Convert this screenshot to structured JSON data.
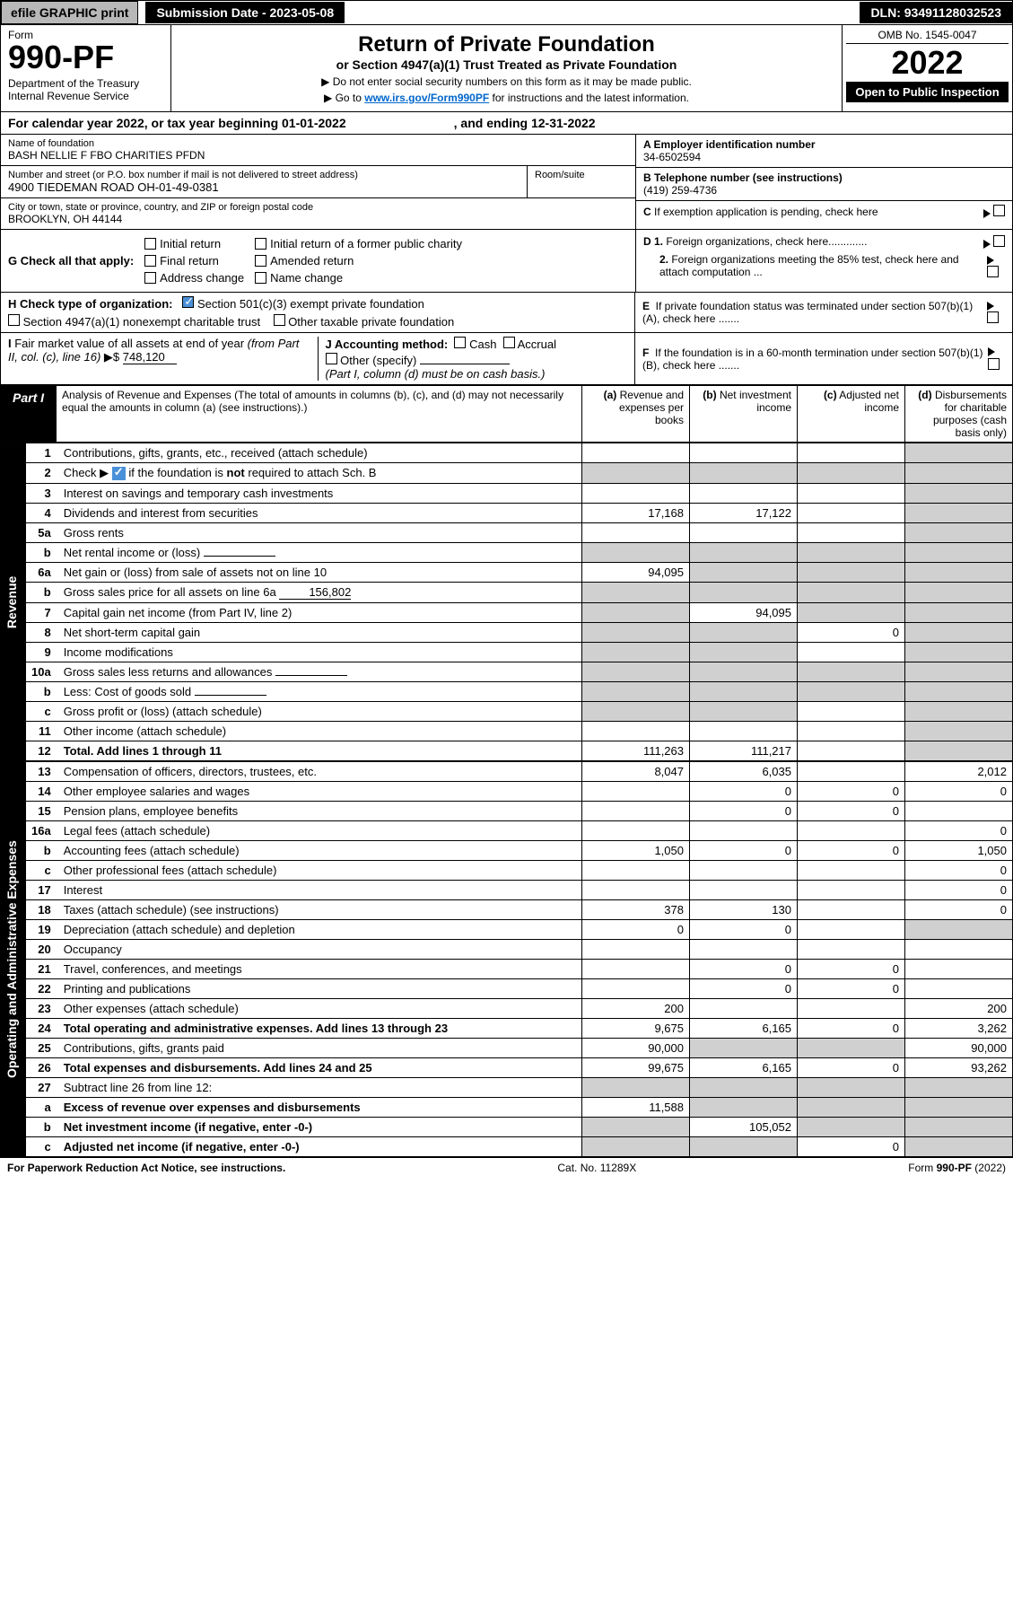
{
  "topbar": {
    "efile": "efile GRAPHIC print",
    "subDate": "Submission Date - 2023-05-08",
    "dln": "DLN: 93491128032523"
  },
  "header": {
    "formLabel": "Form",
    "formNo": "990-PF",
    "dept": "Department of the Treasury\nInternal Revenue Service",
    "title": "Return of Private Foundation",
    "subtitle": "or Section 4947(a)(1) Trust Treated as Private Foundation",
    "note1": "▶ Do not enter social security numbers on this form as it may be made public.",
    "note2": "▶ Go to ",
    "link": "www.irs.gov/Form990PF",
    "note2b": " for instructions and the latest information.",
    "omb": "OMB No. 1545-0047",
    "year": "2022",
    "open": "Open to Public Inspection"
  },
  "calYear": {
    "text1": "For calendar year 2022, or tax year beginning 01-01-2022",
    "text2": ", and ending 12-31-2022"
  },
  "nameBlock": {
    "nameLabel": "Name of foundation",
    "name": "BASH NELLIE F FBO CHARITIES PFDN",
    "einLabel": "A Employer identification number",
    "ein": "34-6502594",
    "addrLabel": "Number and street (or P.O. box number if mail is not delivered to street address)",
    "addr": "4900 TIEDEMAN ROAD OH-01-49-0381",
    "roomLabel": "Room/suite",
    "phoneLabel": "B Telephone number (see instructions)",
    "phone": "(419) 259-4736",
    "cityLabel": "City or town, state or province, country, and ZIP or foreign postal code",
    "city": "BROOKLYN, OH  44144",
    "cLabel": "C If exemption application is pending, check here"
  },
  "gCheck": {
    "label": "G Check all that apply:",
    "items": [
      "Initial return",
      "Initial return of a former public charity",
      "Final return",
      "Amended return",
      "Address change",
      "Name change"
    ]
  },
  "dCheck": {
    "d1": "D 1. Foreign organizations, check here.............",
    "d2": "2. Foreign organizations meeting the 85% test, check here and attach computation ..."
  },
  "hCheck": {
    "label": "H Check type of organization:",
    "opt1": "Section 501(c)(3) exempt private foundation",
    "opt2": "Section 4947(a)(1) nonexempt charitable trust",
    "opt3": "Other taxable private foundation"
  },
  "eCheck": "E  If private foundation status was terminated under section 507(b)(1)(A), check here .......",
  "iBlock": {
    "label": "I Fair market value of all assets at end of year (from Part II, col. (c), line 16) ▶$",
    "value": "748,120"
  },
  "jBlock": {
    "label": "J Accounting method:",
    "cash": "Cash",
    "accrual": "Accrual",
    "other": "Other (specify)",
    "note": "(Part I, column (d) must be on cash basis.)"
  },
  "fCheck": "F  If the foundation is in a 60-month termination under section 507(b)(1)(B), check here .......",
  "part1": {
    "label": "Part I",
    "title": "Analysis of Revenue and Expenses",
    "note": "(The total of amounts in columns (b), (c), and (d) may not necessarily equal the amounts in column (a) (see instructions).)",
    "colA": "(a) Revenue and expenses per books",
    "colB": "(b) Net investment income",
    "colC": "(c) Adjusted net income",
    "colD": "(d) Disbursements for charitable purposes (cash basis only)"
  },
  "vertLabels": {
    "revenue": "Revenue",
    "expenses": "Operating and Administrative Expenses"
  },
  "rows": [
    {
      "no": "1",
      "desc": "Contributions, gifts, grants, etc., received (attach schedule)",
      "a": "",
      "b": "",
      "c": "",
      "d": "shade"
    },
    {
      "no": "2",
      "desc": "Check ▶ ☑ if the foundation is not required to attach Sch. B",
      "a": "shade",
      "b": "shade",
      "c": "shade",
      "d": "shade",
      "hasCheck": true
    },
    {
      "no": "3",
      "desc": "Interest on savings and temporary cash investments",
      "a": "",
      "b": "",
      "c": "",
      "d": "shade"
    },
    {
      "no": "4",
      "desc": "Dividends and interest from securities",
      "a": "17,168",
      "b": "17,122",
      "c": "",
      "d": "shade"
    },
    {
      "no": "5a",
      "desc": "Gross rents",
      "a": "",
      "b": "",
      "c": "",
      "d": "shade"
    },
    {
      "no": "b",
      "desc": "Net rental income or (loss)",
      "a": "shade",
      "b": "shade",
      "c": "shade",
      "d": "shade",
      "inline": true
    },
    {
      "no": "6a",
      "desc": "Net gain or (loss) from sale of assets not on line 10",
      "a": "94,095",
      "b": "shade",
      "c": "shade",
      "d": "shade"
    },
    {
      "no": "b",
      "desc": "Gross sales price for all assets on line 6a",
      "a": "shade",
      "b": "shade",
      "c": "shade",
      "d": "shade",
      "inline": true,
      "inlineVal": "156,802"
    },
    {
      "no": "7",
      "desc": "Capital gain net income (from Part IV, line 2)",
      "a": "shade",
      "b": "94,095",
      "c": "shade",
      "d": "shade"
    },
    {
      "no": "8",
      "desc": "Net short-term capital gain",
      "a": "shade",
      "b": "shade",
      "c": "0",
      "d": "shade"
    },
    {
      "no": "9",
      "desc": "Income modifications",
      "a": "shade",
      "b": "shade",
      "c": "",
      "d": "shade"
    },
    {
      "no": "10a",
      "desc": "Gross sales less returns and allowances",
      "a": "shade",
      "b": "shade",
      "c": "shade",
      "d": "shade",
      "inline": true
    },
    {
      "no": "b",
      "desc": "Less: Cost of goods sold",
      "a": "shade",
      "b": "shade",
      "c": "shade",
      "d": "shade",
      "inline": true
    },
    {
      "no": "c",
      "desc": "Gross profit or (loss) (attach schedule)",
      "a": "shade",
      "b": "shade",
      "c": "",
      "d": "shade"
    },
    {
      "no": "11",
      "desc": "Other income (attach schedule)",
      "a": "",
      "b": "",
      "c": "",
      "d": "shade"
    },
    {
      "no": "12",
      "desc": "Total. Add lines 1 through 11",
      "a": "111,263",
      "b": "111,217",
      "c": "",
      "d": "shade",
      "bold": true
    }
  ],
  "expRows": [
    {
      "no": "13",
      "desc": "Compensation of officers, directors, trustees, etc.",
      "a": "8,047",
      "b": "6,035",
      "c": "",
      "d": "2,012"
    },
    {
      "no": "14",
      "desc": "Other employee salaries and wages",
      "a": "",
      "b": "0",
      "c": "0",
      "d": "0"
    },
    {
      "no": "15",
      "desc": "Pension plans, employee benefits",
      "a": "",
      "b": "0",
      "c": "0",
      "d": ""
    },
    {
      "no": "16a",
      "desc": "Legal fees (attach schedule)",
      "a": "",
      "b": "",
      "c": "",
      "d": "0"
    },
    {
      "no": "b",
      "desc": "Accounting fees (attach schedule)",
      "a": "1,050",
      "b": "0",
      "c": "0",
      "d": "1,050"
    },
    {
      "no": "c",
      "desc": "Other professional fees (attach schedule)",
      "a": "",
      "b": "",
      "c": "",
      "d": "0"
    },
    {
      "no": "17",
      "desc": "Interest",
      "a": "",
      "b": "",
      "c": "",
      "d": "0"
    },
    {
      "no": "18",
      "desc": "Taxes (attach schedule) (see instructions)",
      "a": "378",
      "b": "130",
      "c": "",
      "d": "0"
    },
    {
      "no": "19",
      "desc": "Depreciation (attach schedule) and depletion",
      "a": "0",
      "b": "0",
      "c": "",
      "d": "shade"
    },
    {
      "no": "20",
      "desc": "Occupancy",
      "a": "",
      "b": "",
      "c": "",
      "d": ""
    },
    {
      "no": "21",
      "desc": "Travel, conferences, and meetings",
      "a": "",
      "b": "0",
      "c": "0",
      "d": ""
    },
    {
      "no": "22",
      "desc": "Printing and publications",
      "a": "",
      "b": "0",
      "c": "0",
      "d": ""
    },
    {
      "no": "23",
      "desc": "Other expenses (attach schedule)",
      "a": "200",
      "b": "",
      "c": "",
      "d": "200"
    },
    {
      "no": "24",
      "desc": "Total operating and administrative expenses. Add lines 13 through 23",
      "a": "9,675",
      "b": "6,165",
      "c": "0",
      "d": "3,262",
      "bold": true
    },
    {
      "no": "25",
      "desc": "Contributions, gifts, grants paid",
      "a": "90,000",
      "b": "shade",
      "c": "shade",
      "d": "90,000"
    },
    {
      "no": "26",
      "desc": "Total expenses and disbursements. Add lines 24 and 25",
      "a": "99,675",
      "b": "6,165",
      "c": "0",
      "d": "93,262",
      "bold": true
    },
    {
      "no": "27",
      "desc": "Subtract line 26 from line 12:",
      "a": "shade",
      "b": "shade",
      "c": "shade",
      "d": "shade"
    },
    {
      "no": "a",
      "desc": "Excess of revenue over expenses and disbursements",
      "a": "11,588",
      "b": "shade",
      "c": "shade",
      "d": "shade",
      "bold": true
    },
    {
      "no": "b",
      "desc": "Net investment income (if negative, enter -0-)",
      "a": "shade",
      "b": "105,052",
      "c": "shade",
      "d": "shade",
      "bold": true
    },
    {
      "no": "c",
      "desc": "Adjusted net income (if negative, enter -0-)",
      "a": "shade",
      "b": "shade",
      "c": "0",
      "d": "shade",
      "bold": true
    }
  ],
  "footer": {
    "left": "For Paperwork Reduction Act Notice, see instructions.",
    "center": "Cat. No. 11289X",
    "right": "Form 990-PF (2022)"
  }
}
